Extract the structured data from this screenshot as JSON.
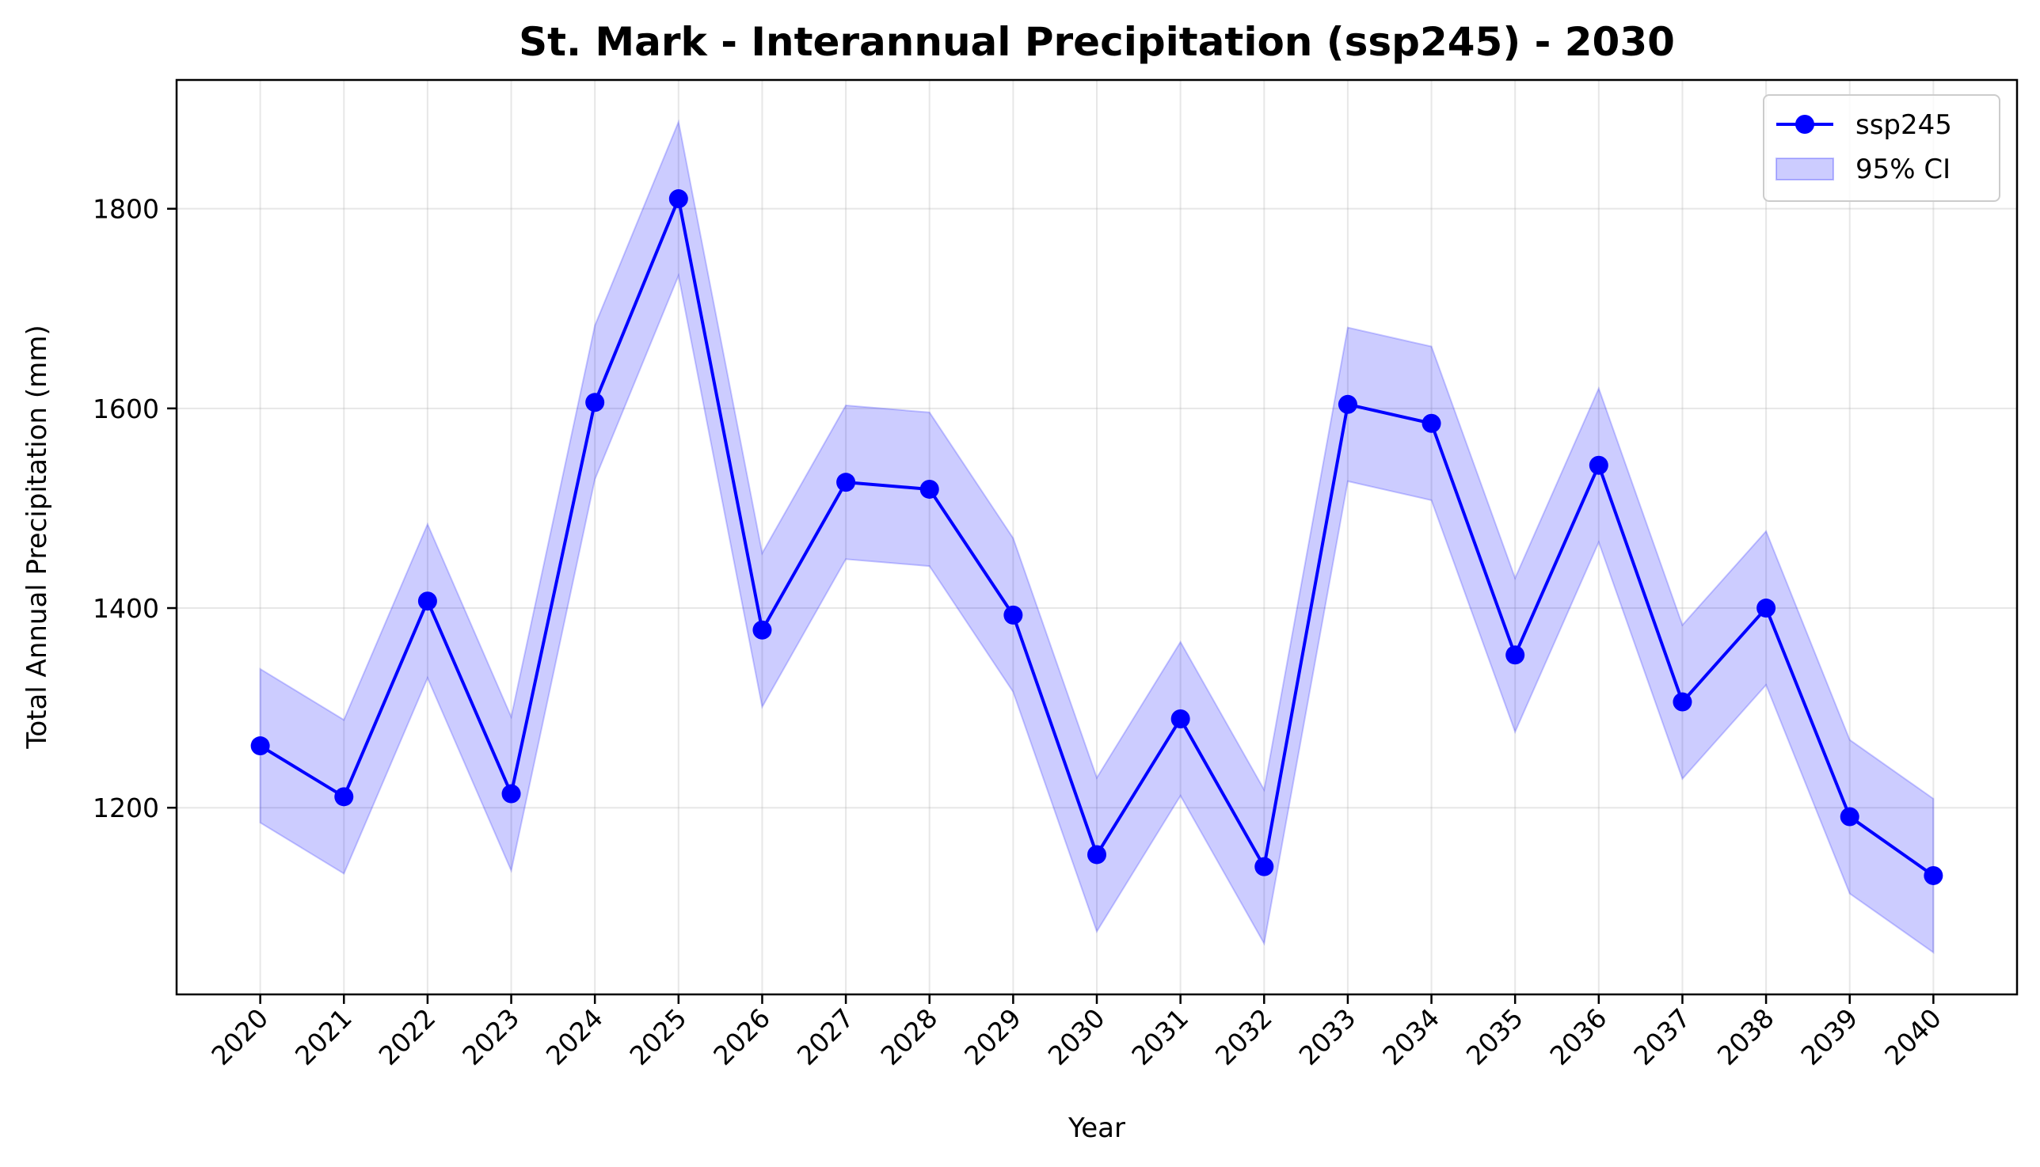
{
  "chart_data": {
    "type": "line",
    "title": "St. Mark - Interannual Precipitation (ssp245) - 2030",
    "xlabel": "Year",
    "ylabel": "Total Annual Precipitation (mm)",
    "x": [
      2020,
      2021,
      2022,
      2023,
      2024,
      2025,
      2026,
      2027,
      2028,
      2029,
      2030,
      2031,
      2032,
      2033,
      2034,
      2035,
      2036,
      2037,
      2038,
      2039,
      2040
    ],
    "x_tick_labels": [
      "2020",
      "2021",
      "2022",
      "2023",
      "2024",
      "2025",
      "2026",
      "2027",
      "2028",
      "2029",
      "2030",
      "2031",
      "2032",
      "2033",
      "2034",
      "2035",
      "2036",
      "2037",
      "2038",
      "2039",
      "2040"
    ],
    "series": [
      {
        "name": "ssp245",
        "values": [
          1262,
          1211,
          1407,
          1214,
          1606,
          1810,
          1378,
          1526,
          1519,
          1393,
          1153,
          1289,
          1141,
          1604,
          1585,
          1353,
          1543,
          1306,
          1400,
          1191,
          1132
        ]
      }
    ],
    "ci": {
      "name": "95% CI",
      "upper": [
        1339,
        1288,
        1484,
        1291,
        1683,
        1887,
        1455,
        1603,
        1596,
        1470,
        1230,
        1366,
        1218,
        1681,
        1662,
        1430,
        1620,
        1383,
        1477,
        1268,
        1209
      ],
      "lower": [
        1185,
        1134,
        1330,
        1137,
        1529,
        1733,
        1301,
        1449,
        1442,
        1316,
        1076,
        1212,
        1064,
        1527,
        1508,
        1276,
        1466,
        1229,
        1323,
        1114,
        1055
      ]
    },
    "y_ticks": [
      1200,
      1400,
      1600,
      1800
    ],
    "y_tick_labels": [
      "1200",
      "1400",
      "1600",
      "1800"
    ],
    "ylim": [
      1013,
      1929
    ],
    "xlim": [
      2019.0,
      2041.0
    ],
    "grid": true,
    "legend_position": "upper right",
    "colors": {
      "line": "#0000ff",
      "band": "#0000ff"
    }
  }
}
